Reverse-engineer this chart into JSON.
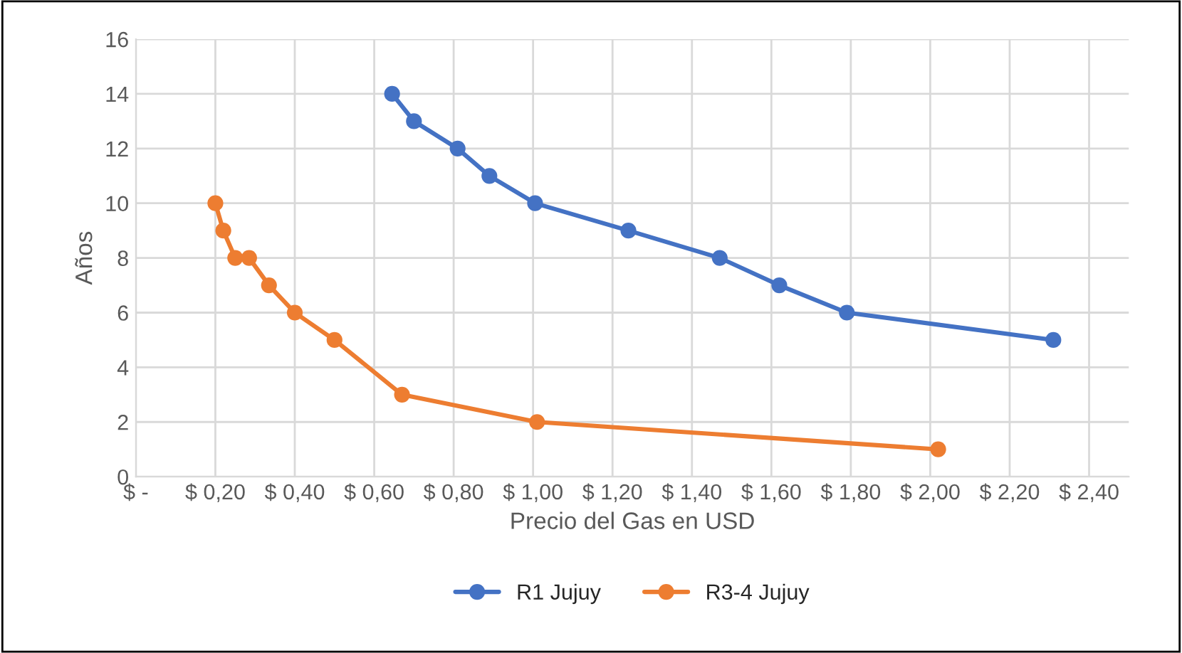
{
  "chart_data": {
    "type": "line",
    "xlabel": "Precio del Gas en USD",
    "ylabel": "Años",
    "series": [
      {
        "name": "R1 Jujuy",
        "color": "#4472c4",
        "x": [
          0.645,
          0.7,
          0.81,
          0.89,
          1.005,
          1.24,
          1.47,
          1.62,
          1.79,
          2.31
        ],
        "values": [
          14,
          13,
          12,
          11,
          10,
          9,
          8,
          7,
          6,
          5
        ]
      },
      {
        "name": "R3-4 Jujuy",
        "color": "#ed7d31",
        "x": [
          0.2,
          0.22,
          0.25,
          0.285,
          0.335,
          0.4,
          0.5,
          0.67,
          1.01,
          2.02
        ],
        "values": [
          10,
          9,
          8,
          8,
          7,
          6,
          5,
          3,
          2,
          1
        ]
      }
    ],
    "xlim": [
      0,
      2.5
    ],
    "xticks": [
      {
        "value": 0,
        "label": "$ -"
      },
      {
        "value": 0.2,
        "label": "$ 0,20"
      },
      {
        "value": 0.4,
        "label": "$ 0,40"
      },
      {
        "value": 0.6,
        "label": "$ 0,60"
      },
      {
        "value": 0.8,
        "label": "$ 0,80"
      },
      {
        "value": 1.0,
        "label": "$ 1,00"
      },
      {
        "value": 1.2,
        "label": "$ 1,20"
      },
      {
        "value": 1.4,
        "label": "$ 1,40"
      },
      {
        "value": 1.6,
        "label": "$ 1,60"
      },
      {
        "value": 1.8,
        "label": "$ 1,80"
      },
      {
        "value": 2.0,
        "label": "$ 2,00"
      },
      {
        "value": 2.2,
        "label": "$ 2,20"
      },
      {
        "value": 2.4,
        "label": "$ 2,40"
      }
    ],
    "ylim": [
      0,
      16
    ],
    "yticks": [
      0,
      2,
      4,
      6,
      8,
      10,
      12,
      14,
      16
    ],
    "grid": true,
    "legend": "bottom",
    "marker": "circle",
    "line_style": "solid"
  }
}
